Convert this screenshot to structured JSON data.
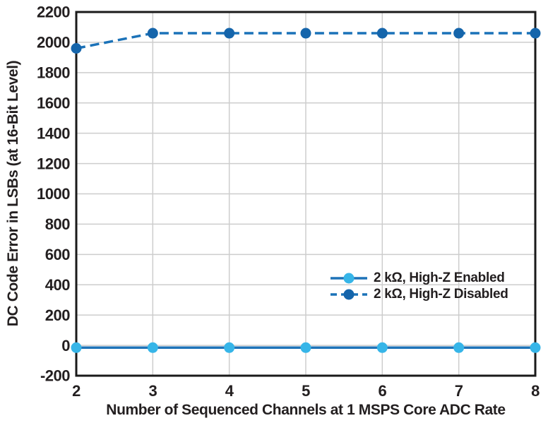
{
  "chart_data": {
    "type": "line",
    "title": "",
    "xlabel": "Number of Sequenced Channels at 1 MSPS Core ADC Rate",
    "ylabel": "DC Code Error in LSBs (at 16-Bit Level)",
    "x": [
      2,
      3,
      4,
      5,
      6,
      7,
      8
    ],
    "xlim": [
      2,
      8
    ],
    "ylim": [
      -200,
      2200
    ],
    "ytick_step": 200,
    "grid": true,
    "legend_position": "inside-right",
    "series": [
      {
        "name": "2 kΩ, High-Z Enabled",
        "values": [
          -15,
          -15,
          -15,
          -15,
          -15,
          -15,
          -15
        ],
        "line_style": "solid",
        "line_color": "#1E73B8",
        "marker_color": "#36B5E8"
      },
      {
        "name": "2 kΩ, High-Z Disabled",
        "values": [
          1960,
          2060,
          2060,
          2060,
          2060,
          2060,
          2060
        ],
        "line_style": "dashed",
        "line_color": "#1B72B8",
        "marker_color": "#1565AB"
      }
    ],
    "colors": {
      "frame": "#1a1a1a",
      "grid": "#cdcdcd",
      "text": "#231F20",
      "background": "#ffffff"
    }
  }
}
